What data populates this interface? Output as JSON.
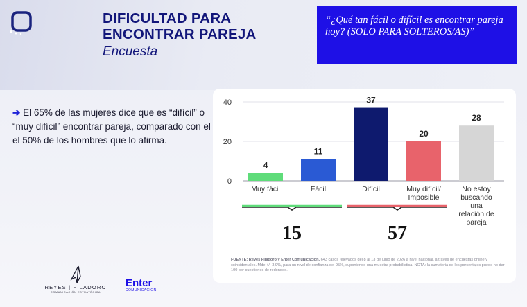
{
  "header": {
    "title": "DIFICULTAD PARA ENCONTRAR PAREJA",
    "subtitle": "Encuesta"
  },
  "question": "“¿Qué tan fácil o difícil es encontrar pareja hoy? (SOLO PARA SOLTEROS/AS)”",
  "finding": {
    "arrow": "➔",
    "text": "El 65% de las mujeres dice que es “difícil” o “muy difícil” encontrar pareja, comparado con el el 50% de los hombres que lo afirma."
  },
  "chart_data": {
    "type": "bar",
    "categories": [
      "Muy fácil",
      "Fácil",
      "Difícil",
      "Muy difícil/ Imposible",
      "No estoy buscando una relación de pareja"
    ],
    "values": [
      4,
      11,
      37,
      20,
      28
    ],
    "colors": [
      "#5fdc7a",
      "#2a5ad4",
      "#0e1a6e",
      "#e8636b",
      "#d6d6d6"
    ],
    "ylim": [
      0,
      40
    ],
    "yticks": [
      0,
      20,
      40
    ],
    "grid": true,
    "groups": [
      {
        "label": "15",
        "from": 0,
        "to": 1,
        "color": "#5fdc7a"
      },
      {
        "label": "57",
        "from": 2,
        "to": 3,
        "color": "#e8636b"
      }
    ]
  },
  "source": {
    "label": "FUENTE: Reyes Filadoro y Enter Comunicación.",
    "text": "643 casos relevados del 8 al 13 de junio de 2026 a nivel nacional, a través de encuestas online y coincidentales. Mde +/- 3,9%, para un nivel de confianza del 95%, suponiendo una muestra probabilística. NOTA: la sumatoria de los porcentajes puede no dar 100 por cuestiones de redondeo."
  },
  "logos": {
    "reyes_name": "REYES | FILADORO",
    "reyes_tag": "COMUNICACIÓN ESTRATÉGICA",
    "enter_name": "Enter",
    "enter_tag": "COMUNICACIÓN"
  }
}
